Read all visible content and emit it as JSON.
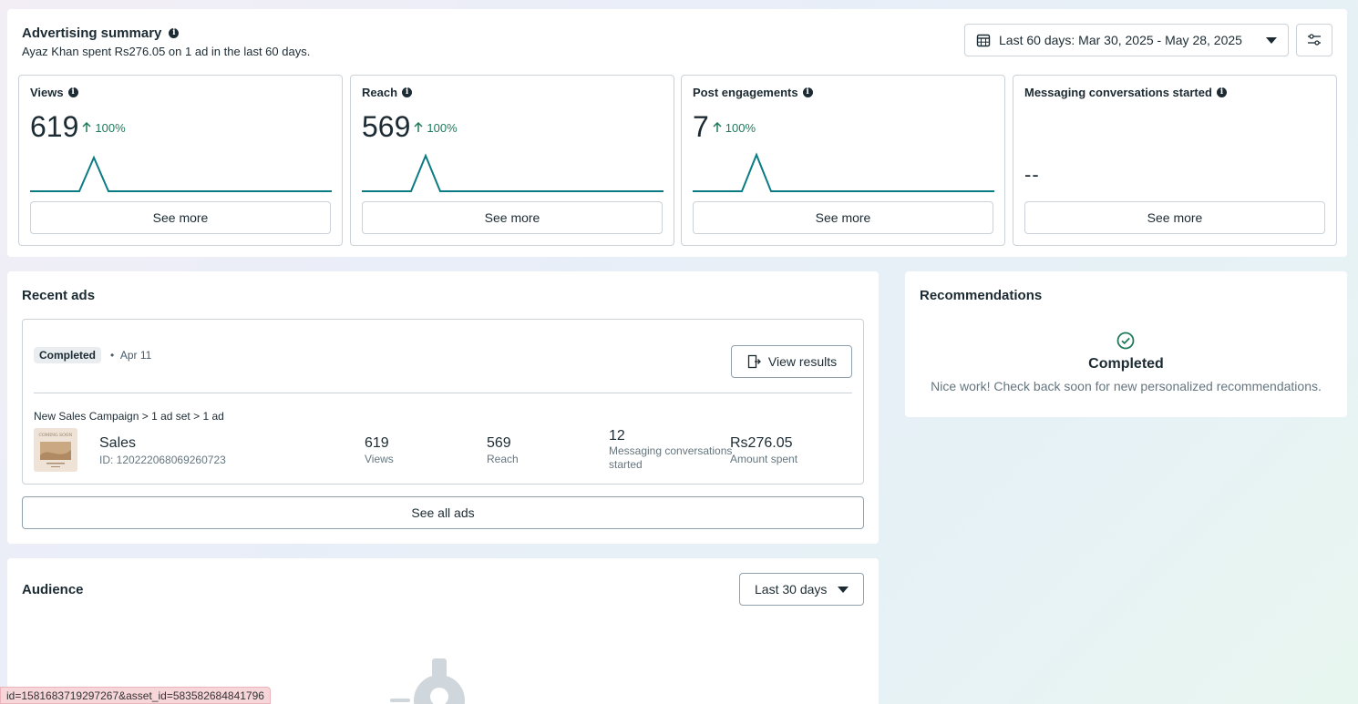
{
  "summary": {
    "title": "Advertising summary",
    "subtitle": "Ayaz Khan spent Rs276.05 on 1 ad in the last 60 days.",
    "date_range": "Last 60 days: Mar 30, 2025 - May 28, 2025",
    "see_more_label": "See more",
    "metrics": [
      {
        "title": "Views",
        "value": "619",
        "change": "100%"
      },
      {
        "title": "Reach",
        "value": "569",
        "change": "100%"
      },
      {
        "title": "Post engagements",
        "value": "7",
        "change": "100%"
      },
      {
        "title": "Messaging conversations started",
        "value": "--"
      }
    ]
  },
  "recent_ads": {
    "title": "Recent ads",
    "status": "Completed",
    "date": "Apr 11",
    "view_results_label": "View results",
    "breadcrumb": "New Sales Campaign > 1 ad set > 1 ad",
    "ad": {
      "name": "Sales",
      "id": "ID: 120222068069260723",
      "thumb_text": "COMING SOON"
    },
    "stats": {
      "views_value": "619",
      "views_label": "Views",
      "reach_value": "569",
      "reach_label": "Reach",
      "msg_value": "12",
      "msg_label": "Messaging conversations started",
      "spent_value": "Rs276.05",
      "spent_label": "Amount spent"
    },
    "see_all_label": "See all ads"
  },
  "recommendations": {
    "title": "Recommendations",
    "status": "Completed",
    "message": "Nice work! Check back soon for new personalized recommendations."
  },
  "audience": {
    "title": "Audience",
    "range": "Last 30 days"
  },
  "status_bar_url": "id=1581683719297267&asset_id=583582684841796",
  "colors": {
    "accent_green": "#1f7a5a",
    "spark_line": "#0a7b83",
    "border": "#cbd2d9"
  }
}
